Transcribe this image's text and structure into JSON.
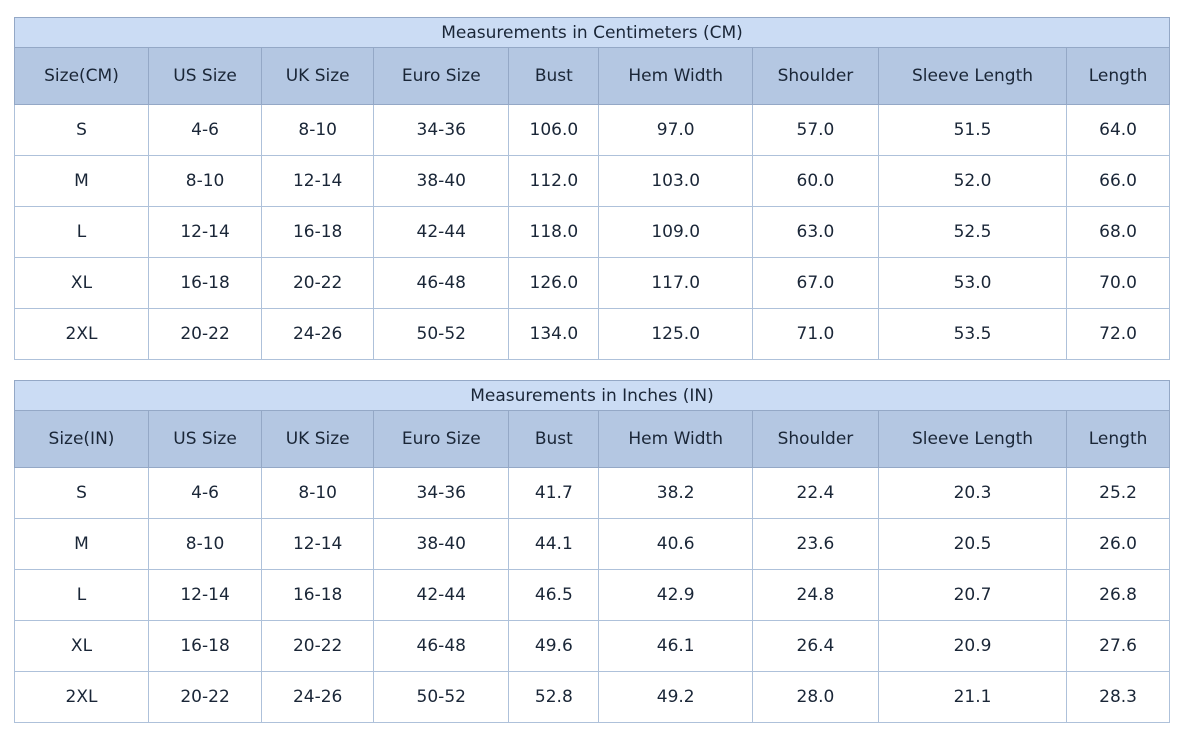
{
  "colors": {
    "title_row_background": "#cbdcf4",
    "header_row_background": "#b4c7e2",
    "outer_border": "#94a8c6",
    "inner_border": "#aec1da",
    "text": "#1a2637",
    "page_background": "#ffffff"
  },
  "chart_data": [
    {
      "type": "table",
      "title": "Measurements in Centimeters (CM)",
      "columns": [
        "Size(CM)",
        "US Size",
        "UK Size",
        "Euro Size",
        "Bust",
        "Hem Width",
        "Shoulder",
        "Sleeve Length",
        "Length"
      ],
      "rows": [
        [
          "S",
          "4-6",
          "8-10",
          "34-36",
          "106.0",
          "97.0",
          "57.0",
          "51.5",
          "64.0"
        ],
        [
          "M",
          "8-10",
          "12-14",
          "38-40",
          "112.0",
          "103.0",
          "60.0",
          "52.0",
          "66.0"
        ],
        [
          "L",
          "12-14",
          "16-18",
          "42-44",
          "118.0",
          "109.0",
          "63.0",
          "52.5",
          "68.0"
        ],
        [
          "XL",
          "16-18",
          "20-22",
          "46-48",
          "126.0",
          "117.0",
          "67.0",
          "53.0",
          "70.0"
        ],
        [
          "2XL",
          "20-22",
          "24-26",
          "50-52",
          "134.0",
          "125.0",
          "71.0",
          "53.5",
          "72.0"
        ]
      ]
    },
    {
      "type": "table",
      "title": "Measurements in Inches (IN)",
      "columns": [
        "Size(IN)",
        "US Size",
        "UK Size",
        "Euro Size",
        "Bust",
        "Hem Width",
        "Shoulder",
        "Sleeve Length",
        "Length"
      ],
      "rows": [
        [
          "S",
          "4-6",
          "8-10",
          "34-36",
          "41.7",
          "38.2",
          "22.4",
          "20.3",
          "25.2"
        ],
        [
          "M",
          "8-10",
          "12-14",
          "38-40",
          "44.1",
          "40.6",
          "23.6",
          "20.5",
          "26.0"
        ],
        [
          "L",
          "12-14",
          "16-18",
          "42-44",
          "46.5",
          "42.9",
          "24.8",
          "20.7",
          "26.8"
        ],
        [
          "XL",
          "16-18",
          "20-22",
          "46-48",
          "49.6",
          "46.1",
          "26.4",
          "20.9",
          "27.6"
        ],
        [
          "2XL",
          "20-22",
          "24-26",
          "50-52",
          "52.8",
          "49.2",
          "28.0",
          "21.1",
          "28.3"
        ]
      ]
    }
  ]
}
